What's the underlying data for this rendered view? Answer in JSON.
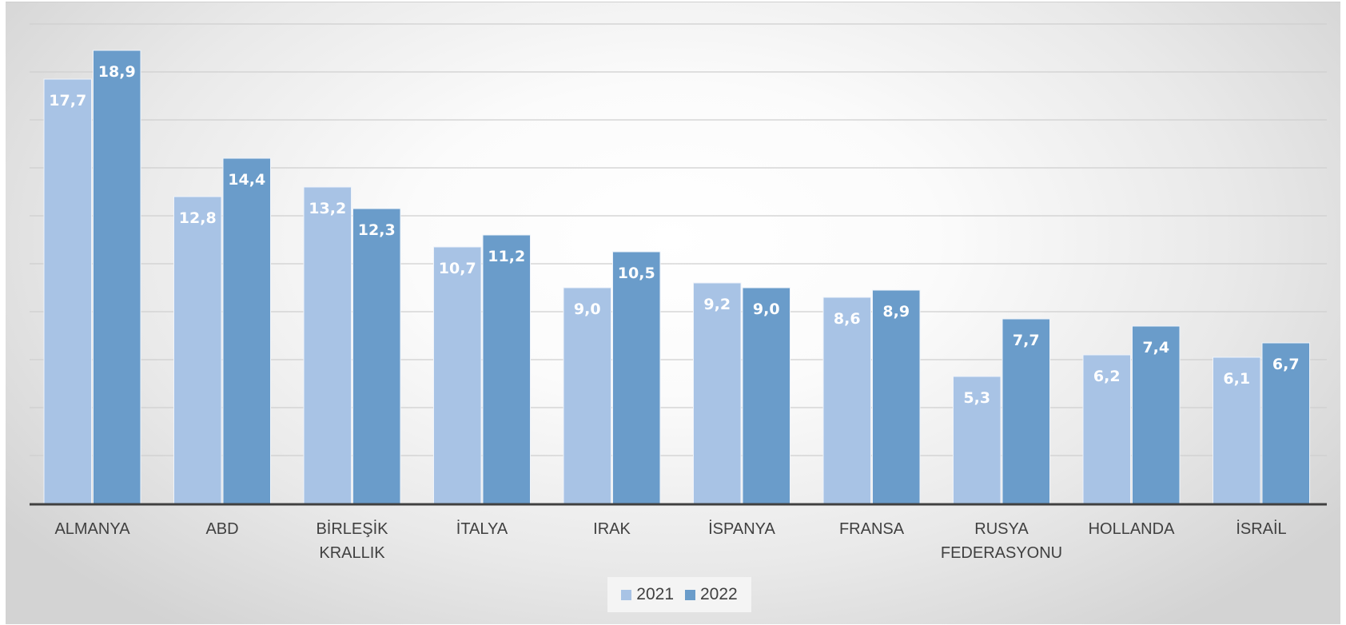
{
  "colors": {
    "series_2021": "#a8c3e5",
    "series_2022": "#6a9cca",
    "gridline": "#cfcfcf",
    "axis": "#404040",
    "text": "#404040",
    "data_label": "#ffffff"
  },
  "chart_data": {
    "type": "bar",
    "title": "",
    "xlabel": "",
    "ylabel": "",
    "ylim": [
      0,
      20
    ],
    "grid": true,
    "legend_position": "bottom",
    "categories": [
      [
        "ALMANYA"
      ],
      [
        "ABD"
      ],
      [
        "BİRLEŞİK",
        "KRALLIK"
      ],
      [
        "İTALYA"
      ],
      [
        "IRAK"
      ],
      [
        "İSPANYA"
      ],
      [
        "FRANSA"
      ],
      [
        "RUSYA",
        "FEDERASYONU"
      ],
      [
        "HOLLANDA"
      ],
      [
        "İSRAİL"
      ]
    ],
    "series": [
      {
        "name": "2021",
        "values": [
          17.7,
          12.8,
          13.2,
          10.7,
          9.0,
          9.2,
          8.6,
          5.3,
          6.2,
          6.1
        ],
        "labels": [
          "17,7",
          "12,8",
          "13,2",
          "10,7",
          "9,0",
          "9,2",
          "8,6",
          "5,3",
          "6,2",
          "6,1"
        ]
      },
      {
        "name": "2022",
        "values": [
          18.9,
          14.4,
          12.3,
          11.2,
          10.5,
          9.0,
          8.9,
          7.7,
          7.4,
          6.7
        ],
        "labels": [
          "18,9",
          "14,4",
          "12,3",
          "11,2",
          "10,5",
          "9,0",
          "8,9",
          "7,7",
          "7,4",
          "6,7"
        ]
      }
    ]
  }
}
